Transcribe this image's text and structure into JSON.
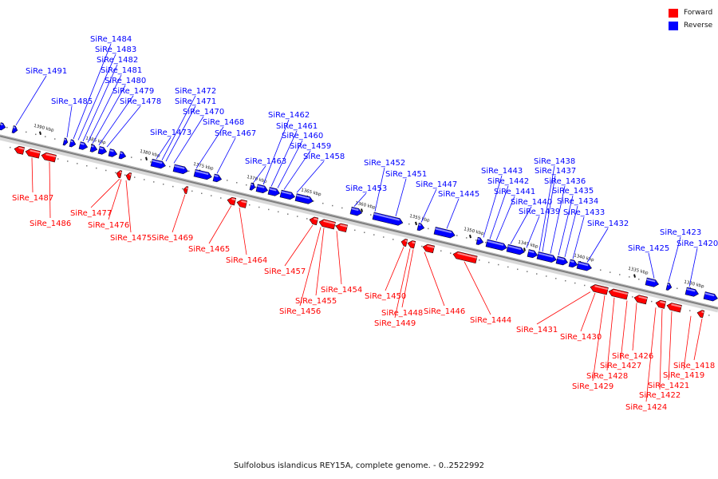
{
  "legend": {
    "forward_label": "Forward",
    "reverse_label": "Reverse",
    "forward_color": "#ff0000",
    "reverse_color": "#0000ff"
  },
  "caption": "Sulfolobus islandicus REY15A, complete genome. - 0..2522992",
  "scale": {
    "min": 0,
    "max": 2522992,
    "ticks": [
      "1390 kbp",
      "1385 kbp",
      "1380 kbp",
      "1375 kbp",
      "1370 kbp",
      "1365 kbp",
      "1360 kbp",
      "1355 kbp",
      "1350 kbp",
      "1345 kbp",
      "1340 kbp",
      "1335 kbp",
      "1330 kbp"
    ]
  },
  "genes": {
    "forward": [
      "SiRe_1487",
      "SiRe_1486",
      "SiRe_1477",
      "SiRe_1476",
      "SiRe_1475",
      "SiRe_1469",
      "SiRe_1465",
      "SiRe_1464",
      "SiRe_1457",
      "SiRe_1456",
      "SiRe_1455",
      "SiRe_1454",
      "SiRe_1450",
      "SiRe_1449",
      "SiRe_1448",
      "SiRe_1446",
      "SiRe_1444",
      "SiRe_1431",
      "SiRe_1430",
      "SiRe_1429",
      "SiRe_1428",
      "SiRe_1427",
      "SiRe_1426",
      "SiRe_1424",
      "SiRe_1422",
      "SiRe_1421",
      "SiRe_1419",
      "SiRe_1418"
    ],
    "reverse": [
      "SiRe_1491",
      "SiRe_1485",
      "SiRe_1484",
      "SiRe_1483",
      "SiRe_1482",
      "SiRe_1481",
      "SiRe_1480",
      "SiRe_1479",
      "SiRe_1478",
      "SiRe_1473",
      "SiRe_1472",
      "SiRe_1471",
      "SiRe_1470",
      "SiRe_1468",
      "SiRe_1467",
      "SiRe_1463",
      "SiRe_1462",
      "SiRe_1461",
      "SiRe_1460",
      "SiRe_1459",
      "SiRe_1458",
      "SiRe_1453",
      "SiRe_1452",
      "SiRe_1451",
      "SiRe_1447",
      "SiRe_1445",
      "SiRe_1443",
      "SiRe_1442",
      "SiRe_1441",
      "SiRe_1440",
      "SiRe_1439",
      "SiRe_1438",
      "SiRe_1437",
      "SiRe_1436",
      "SiRe_1435",
      "SiRe_1434",
      "SiRe_1433",
      "SiRe_1432",
      "SiRe_1425",
      "SiRe_1423",
      "SiRe_1420"
    ]
  }
}
